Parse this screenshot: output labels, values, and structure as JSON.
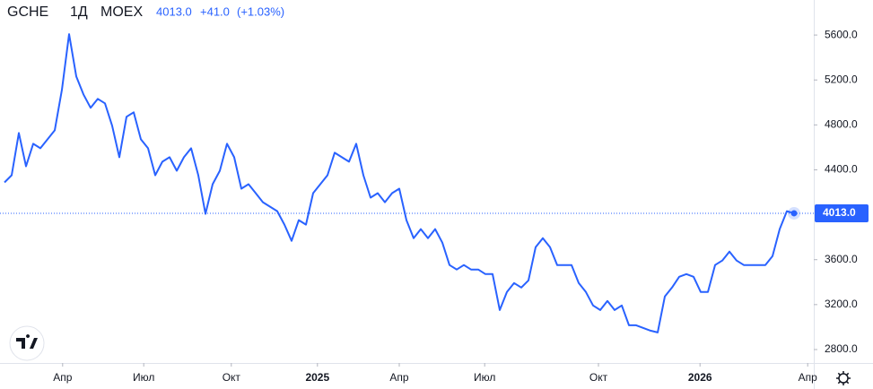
{
  "header": {
    "symbol": "GCHE",
    "interval": "1Д",
    "exchange": "MOEX",
    "change": "+41.0",
    "change_pct": "(+1.03%)"
  },
  "chart_data": {
    "type": "line",
    "color": "#2962ff",
    "values": [
      4288,
      4352,
      4728,
      4432,
      4632,
      4592,
      4672,
      4752,
      5112,
      5608,
      5232,
      5072,
      4952,
      5032,
      4992,
      4792,
      4512,
      4872,
      4912,
      4672,
      4592,
      4352,
      4472,
      4512,
      4392,
      4512,
      4592,
      4352,
      4008,
      4272,
      4392,
      4632,
      4512,
      4232,
      4272,
      4192,
      4112,
      4072,
      4032,
      3912,
      3768,
      3952,
      3912,
      4192,
      4272,
      4352,
      4552,
      4512,
      4472,
      4632,
      4352,
      4152,
      4192,
      4112,
      4192,
      4232,
      3952,
      3792,
      3872,
      3792,
      3872,
      3752,
      3552,
      3512,
      3552,
      3512,
      3512,
      3472,
      3472,
      3152,
      3312,
      3392,
      3352,
      3416,
      3712,
      3792,
      3712,
      3552,
      3552,
      3552,
      3392,
      3312,
      3192,
      3152,
      3232,
      3152,
      3192,
      3016,
      3016,
      2992,
      2968,
      2952,
      3272,
      3352,
      3448,
      3472,
      3448,
      3312,
      3312,
      3552,
      3592,
      3672,
      3592,
      3552,
      3552,
      3552,
      3552,
      3632,
      3872,
      4032,
      4013
    ],
    "xlim": [
      -0.625,
      112.75
    ],
    "xticks": [
      {
        "value": 8.1,
        "label": "Апр"
      },
      {
        "value": 19.4,
        "label": "Июл"
      },
      {
        "value": 31.6,
        "label": "Окт"
      },
      {
        "value": 43.6,
        "label": "2025"
      },
      {
        "value": 55,
        "label": "Апр"
      },
      {
        "value": 66.9,
        "label": "Июл"
      },
      {
        "value": 82.75,
        "label": "Окт"
      },
      {
        "value": 96.9,
        "label": "2026"
      },
      {
        "value": 111.9,
        "label": "Апр"
      }
    ],
    "ylim": [
      2680,
      5912
    ],
    "yticks": [
      {
        "value": 2800,
        "label": "2800.0"
      },
      {
        "value": 3200,
        "label": "3200.0"
      },
      {
        "value": 3600,
        "label": "3600.0"
      },
      {
        "value": 4400,
        "label": "4400.0"
      },
      {
        "value": 4800,
        "label": "4800.0"
      },
      {
        "value": 5200,
        "label": "5200.0"
      },
      {
        "value": 5600,
        "label": "5600.0"
      }
    ],
    "last_price": {
      "value": 4013,
      "label": "4013.0"
    }
  }
}
